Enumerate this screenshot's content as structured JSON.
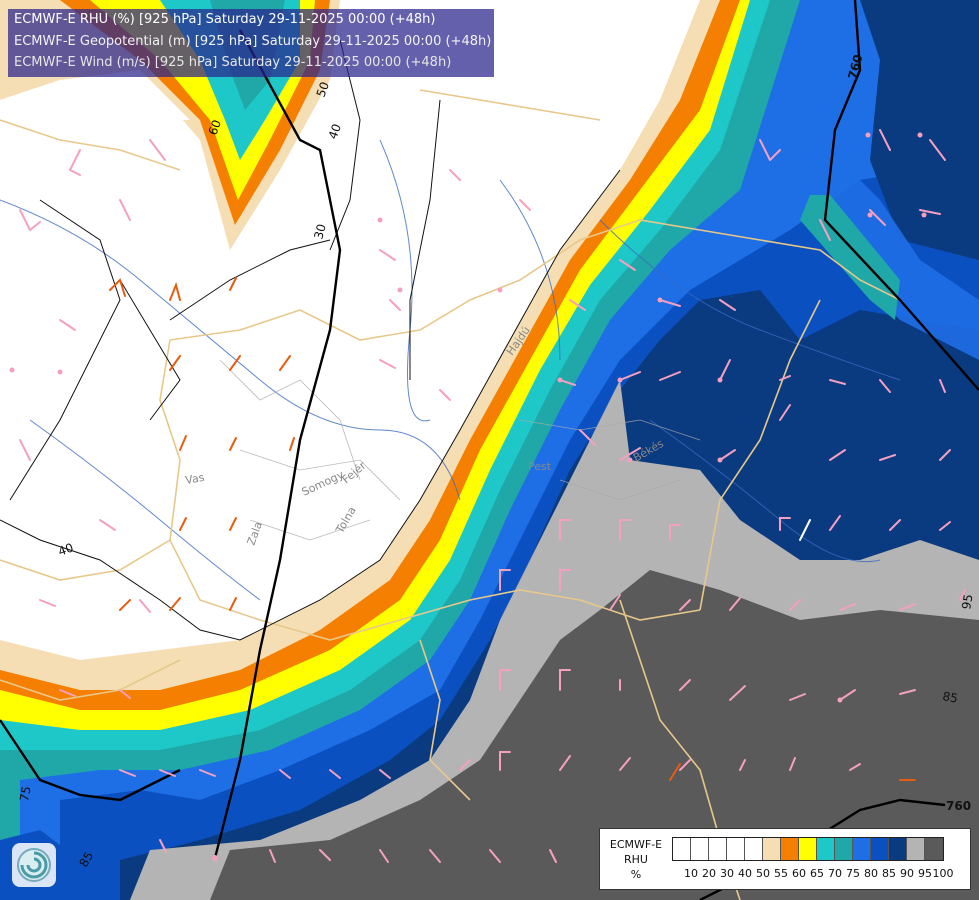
{
  "titles": [
    "ECMWF-E RHU (%) [925 hPa] Saturday 29-11-2025 00:00 (+48h)",
    "ECMWF-E Geopotential (m) [925 hPa] Saturday 29-11-2025 00:00 (+48h)",
    "ECMWF-E Wind (m/s) [925 hPa] Saturday 29-11-2025 00:00 (+48h)"
  ],
  "legend": {
    "model": "ECMWF-E",
    "variable": "RHU",
    "unit": "%",
    "ticks": [
      "10",
      "20",
      "30",
      "40",
      "50",
      "55",
      "60",
      "65",
      "70",
      "75",
      "80",
      "85",
      "90",
      "95",
      "100"
    ],
    "colors": [
      "#ffffff",
      "#ffffff",
      "#ffffff",
      "#ffffff",
      "#ffffff",
      "#f5deb3",
      "#f57f00",
      "#ffff00",
      "#1fc8c8",
      "#20a8a8",
      "#1e6ee6",
      "#0a50c0",
      "#0a3a80",
      "#b4b4b4",
      "#5a5a5a"
    ]
  },
  "contour_labels": {
    "rh": [
      "60",
      "50",
      "40",
      "30",
      "40",
      "75",
      "85",
      "85",
      "95"
    ],
    "geopotential": [
      "760",
      "760"
    ]
  },
  "region_labels": [
    "Vas",
    "Somogy",
    "Fejér",
    "Tolna",
    "Zala",
    "Pest",
    "Békés",
    "Hajdú"
  ],
  "logo_icon": "ogimet-swirl-icon"
}
